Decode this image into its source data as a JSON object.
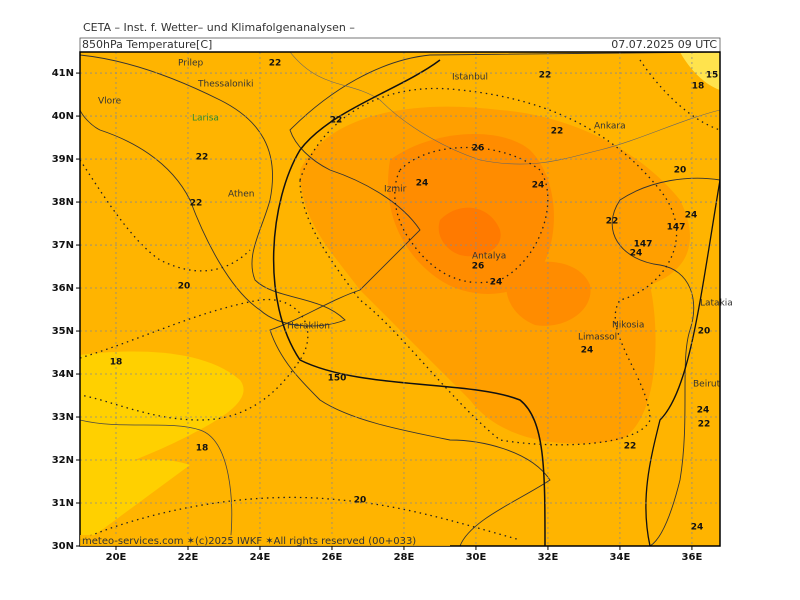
{
  "header": {
    "institute": "CETA – Inst. f. Wetter– und Klimafolgenanalysen –",
    "title": "850hPa Temperature[C]",
    "valid_time": "07.07.2025 09 UTC"
  },
  "map": {
    "lonlim": [
      19,
      36.78
    ],
    "latlim": [
      30,
      41.49
    ],
    "lat_ticks": [
      {
        "value": 30,
        "label": "30N"
      },
      {
        "value": 31,
        "label": "31N"
      },
      {
        "value": 32,
        "label": "32N"
      },
      {
        "value": 33,
        "label": "33N"
      },
      {
        "value": 34,
        "label": "34N"
      },
      {
        "value": 35,
        "label": "35N"
      },
      {
        "value": 36,
        "label": "36N"
      },
      {
        "value": 37,
        "label": "37N"
      },
      {
        "value": 38,
        "label": "38N"
      },
      {
        "value": 39,
        "label": "39N"
      },
      {
        "value": 40,
        "label": "40N"
      },
      {
        "value": 41,
        "label": "41N"
      }
    ],
    "lon_ticks": [
      {
        "value": 20,
        "label": "20E"
      },
      {
        "value": 22,
        "label": "22E"
      },
      {
        "value": 24,
        "label": "24E"
      },
      {
        "value": 26,
        "label": "26E"
      },
      {
        "value": 28,
        "label": "28E"
      },
      {
        "value": 30,
        "label": "30E"
      },
      {
        "value": 32,
        "label": "32E"
      },
      {
        "value": 34,
        "label": "34E"
      },
      {
        "value": 36,
        "label": "36E"
      }
    ],
    "cities": [
      "Prilep",
      "Thessaloniki",
      "Vlore",
      "Larisa",
      "Athen",
      "Izmir",
      "Istanbul",
      "Ankara",
      "Antalya",
      "Heraklion",
      "Nikosia",
      "Limassol",
      "Latakia",
      "Beirut"
    ],
    "contour_labels": [
      "22",
      "22",
      "18",
      "15",
      "22",
      "22",
      "22",
      "26",
      "20",
      "24",
      "24",
      "22",
      "24",
      "22",
      "147",
      "147",
      "24",
      "26",
      "24",
      "20",
      "20",
      "24",
      "18",
      "150",
      "18",
      "22",
      "20",
      "24",
      "22",
      "24"
    ]
  },
  "footer": "meteo-services.com ✶(c)2025 IWKF ✶All rights reserved (00+033)"
}
